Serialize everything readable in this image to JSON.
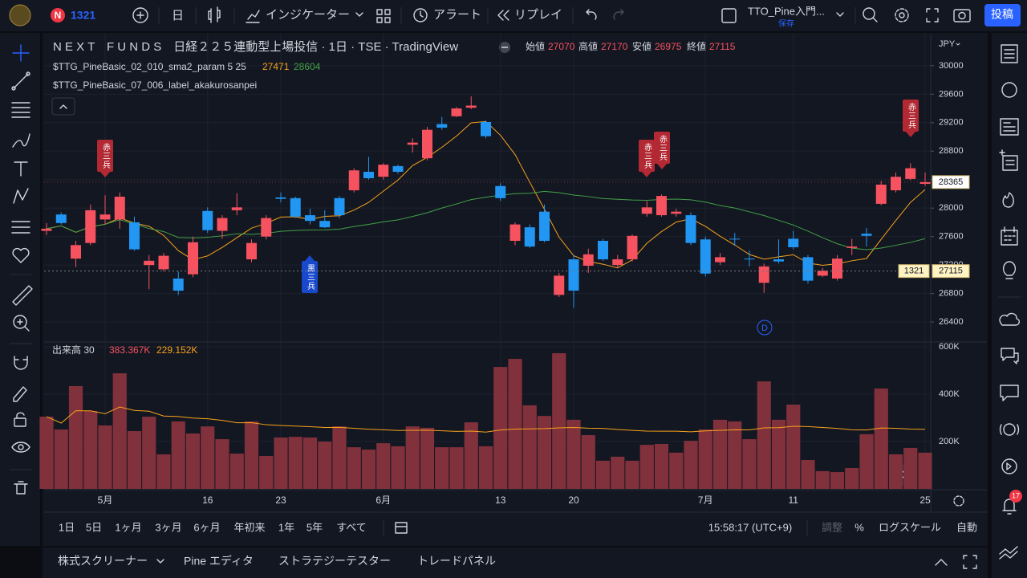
{
  "toolbar": {
    "symbol_badge": "N",
    "symbol": "1321",
    "interval": "日",
    "indicators": "インジケーター",
    "alert": "アラート",
    "replay": "リプレイ",
    "layout_name": "TTO_Pine入門...",
    "layout_status": "保存",
    "publish": "投稿"
  },
  "chart_data": {
    "type": "candlestick",
    "title": "N E X T　F U N D S　日経２２５連動型上場投信 · 1日 · TSE · TradingView",
    "ohlc": [
      {
        "label": "始値",
        "value": 27070
      },
      {
        "label": "高値",
        "value": 27170
      },
      {
        "label": "安値",
        "value": 26975
      },
      {
        "label": "終値",
        "value": 27115
      }
    ],
    "indicators": [
      {
        "name": "$TTG_PineBasic_02_010_sma2_param 5 25",
        "periods": [
          5,
          25
        ],
        "values": [
          27471,
          28604
        ],
        "colors": [
          "#f7a21b",
          "#43a047"
        ]
      },
      {
        "name": "$TTG_PineBasic_07_006_label_akakurosanpei"
      }
    ],
    "volume_legend": {
      "name": "出来高 30",
      "ma_period": 30,
      "values": [
        383367,
        229152
      ],
      "value_labels": [
        "383.367K",
        "229.152K"
      ],
      "ma_color": "#f7a21b"
    },
    "currency": "JPY",
    "categories": [
      null,
      null,
      null,
      null,
      "5月",
      null,
      null,
      null,
      null,
      null,
      null,
      "16",
      null,
      null,
      null,
      null,
      "23",
      null,
      null,
      null,
      null,
      null,
      null,
      "6月",
      null,
      null,
      null,
      null,
      null,
      null,
      null,
      "13",
      null,
      null,
      null,
      null,
      "20",
      null,
      null,
      null,
      null,
      null,
      null,
      null,
      null,
      "7月",
      null,
      null,
      null,
      null,
      null,
      "11",
      null,
      null,
      null,
      null,
      null,
      null,
      null,
      null,
      "25"
    ],
    "candles": {
      "open": [
        27680,
        27910,
        27290,
        27510,
        27840,
        27840,
        27800,
        27200,
        27140,
        27010,
        27070,
        27960,
        27680,
        27970,
        27280,
        27600,
        28150,
        28140,
        27900,
        27820,
        28140,
        28250,
        28510,
        28440,
        28590,
        28890,
        28700,
        29180,
        29290,
        29410,
        29210,
        28310,
        27540,
        27730,
        27950,
        26780,
        27280,
        27190,
        27540,
        27200,
        27280,
        27920,
        27900,
        27920,
        27900,
        27560,
        27240,
        27570,
        27290,
        26950,
        27280,
        27570,
        27310,
        27050,
        27010,
        27440,
        27640,
        28060,
        28250,
        28410,
        28340
      ],
      "high": [
        27790,
        27940,
        27540,
        28050,
        28180,
        28220,
        27880,
        27340,
        27370,
        27110,
        27600,
        28010,
        27900,
        28210,
        27560,
        27900,
        28220,
        28160,
        27990,
        27970,
        28170,
        28560,
        28720,
        28630,
        28610,
        28980,
        29140,
        29280,
        29420,
        29570,
        29230,
        28350,
        27800,
        27770,
        28050,
        27090,
        27340,
        27430,
        27570,
        27340,
        27630,
        28100,
        28190,
        27990,
        27940,
        27600,
        27370,
        27650,
        27400,
        27220,
        27560,
        27680,
        27340,
        27160,
        27340,
        27570,
        27720,
        28380,
        28500,
        28630,
        28500
      ],
      "low": [
        27620,
        27770,
        27170,
        27480,
        27770,
        27710,
        27400,
        26860,
        27110,
        26780,
        27030,
        27650,
        27570,
        27900,
        27240,
        27560,
        28080,
        27860,
        27770,
        27720,
        27860,
        28220,
        28400,
        28400,
        28480,
        28780,
        28670,
        29100,
        29280,
        29390,
        28980,
        28100,
        27480,
        27440,
        27520,
        26750,
        26600,
        27090,
        27260,
        27160,
        27250,
        27880,
        27880,
        27880,
        27480,
        27040,
        27200,
        27470,
        27180,
        26810,
        27220,
        27420,
        26940,
        27030,
        26980,
        27340,
        27460,
        28040,
        28220,
        28390,
        28310
      ],
      "close": [
        27710,
        27790,
        27480,
        27970,
        27910,
        28160,
        27420,
        27260,
        27330,
        26840,
        27520,
        27690,
        27860,
        28010,
        27510,
        27860,
        28130,
        27880,
        27820,
        27730,
        27900,
        28530,
        28420,
        28610,
        28510,
        28920,
        29100,
        29130,
        29400,
        29440,
        29010,
        28140,
        27770,
        27460,
        27540,
        27050,
        26840,
        27350,
        27280,
        27280,
        27610,
        28010,
        28170,
        27950,
        27510,
        27080,
        27310,
        27560,
        27280,
        27180,
        27250,
        27450,
        26980,
        27120,
        27290,
        27460,
        27610,
        28330,
        28440,
        28560,
        28365
      ]
    },
    "volume": [
      305000,
      251000,
      434000,
      329000,
      268000,
      488000,
      244000,
      305000,
      146000,
      285000,
      234000,
      264000,
      210000,
      149000,
      285000,
      139000,
      217000,
      220000,
      217000,
      200000,
      264000,
      176000,
      166000,
      193000,
      180000,
      264000,
      258000,
      176000,
      176000,
      281000,
      180000,
      515000,
      549000,
      353000,
      308000,
      573000,
      292000,
      227000,
      119000,
      136000,
      119000,
      186000,
      190000,
      153000,
      203000,
      251000,
      292000,
      285000,
      210000,
      454000,
      292000,
      356000,
      122000,
      75000,
      71000,
      88000,
      231000,
      424000,
      146000,
      173000,
      153000
    ],
    "up_color": "#f7525f",
    "down_color": "#2196f3",
    "volume_color": "#80313b",
    "ylim": [
      26130,
      30450
    ],
    "yticks": [
      26400,
      26800,
      27200,
      27600,
      28000,
      28400,
      28800,
      29200,
      29600,
      30000
    ],
    "volume_ylim": [
      0,
      613600
    ],
    "volume_ticks": [
      {
        "value": 200000,
        "label": "200K"
      },
      {
        "value": 400000,
        "label": "400K"
      },
      {
        "value": 600000,
        "label": "600K"
      }
    ],
    "grid": true,
    "crosshair": {
      "symbol": "1321",
      "price": 27115
    },
    "annotations": [
      "赤三兵",
      "黒三兵",
      "赤三兵",
      "赤三兵",
      "赤三兵"
    ],
    "dividend": "D"
  },
  "timeframes": [
    "1日",
    "5日",
    "1ヶ月",
    "3ヶ月",
    "6ヶ月",
    "年初来",
    "1年",
    "5年",
    "すべて"
  ],
  "status": {
    "time": "15:58:17 (UTC+9)",
    "adjust": "調整",
    "percent": "%",
    "log": "ログスケール",
    "auto": "自動"
  },
  "bottom_panel": [
    "株式スクリーナー",
    "Pine エディタ",
    "ストラテジーテスター",
    "トレードパネル"
  ],
  "notifications": "17"
}
